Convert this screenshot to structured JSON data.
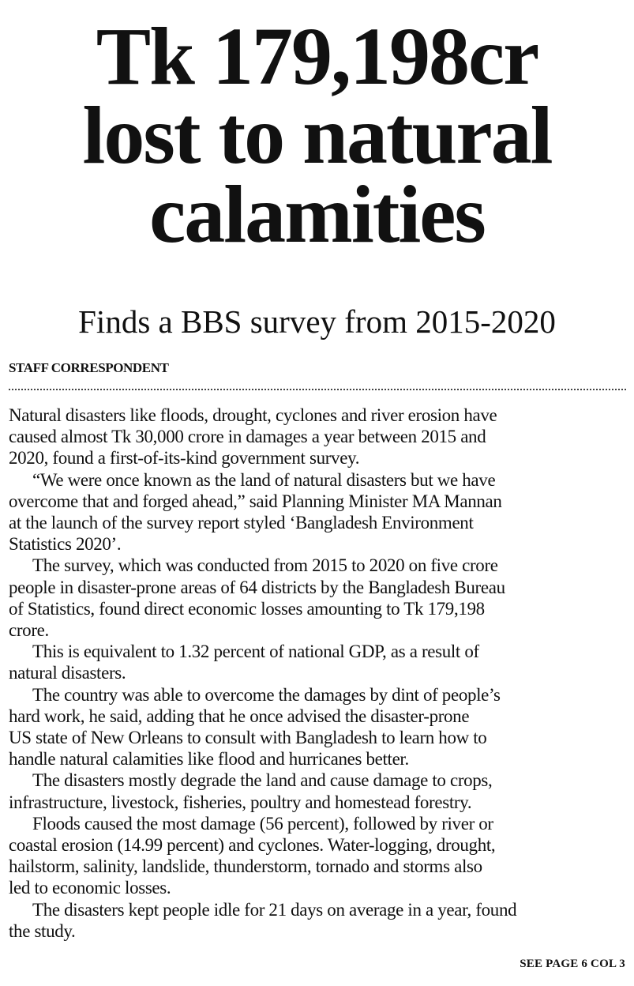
{
  "headline": [
    "Tk 179,198cr",
    "lost to natural",
    "calamities"
  ],
  "subtitle": "Finds a BBS survey from 2015-2020",
  "byline": "STAFF CORRESPONDENT",
  "paragraphs": [
    [
      "Natural disasters like floods, drought, cyclones and river erosion have",
      "caused almost Tk 30,000 crore in damages a year between 2015 and",
      "2020, found a first-of-its-kind government survey."
    ],
    [
      "“We were once known as the land of natural disasters but we have",
      "overcome that and forged ahead,” said Planning Minister MA Mannan",
      "at the launch of the survey report styled ‘Bangladesh Environment",
      "Statistics 2020’."
    ],
    [
      "The survey, which was conducted from 2015 to 2020 on five crore",
      "people in disaster-prone areas of 64 districts by the Bangladesh Bureau",
      "of Statistics, found direct economic losses amounting to Tk 179,198",
      "crore."
    ],
    [
      "This is equivalent to 1.32 percent of national GDP, as a result of",
      "natural disasters."
    ],
    [
      "The country was able to overcome the damages by dint of people’s",
      "hard work, he said, adding that he once advised the disaster-prone",
      "US state of New Orleans to consult with Bangladesh to learn how to",
      "handle natural calamities like flood and hurricanes better."
    ],
    [
      "The disasters mostly degrade the land and cause damage to crops,",
      "infrastructure, livestock, fisheries, poultry and homestead forestry."
    ],
    [
      "Floods caused the most damage (56 percent), followed by river or",
      "coastal erosion (14.99 percent) and cyclones. Water-logging, drought,",
      "hailstorm, salinity, landslide, thunderstorm, tornado and storms also",
      "led to economic losses."
    ],
    [
      "The disasters kept people idle for 21 days on average in a year, found",
      "the study."
    ]
  ],
  "continuation": "SEE PAGE 6 COL 3"
}
